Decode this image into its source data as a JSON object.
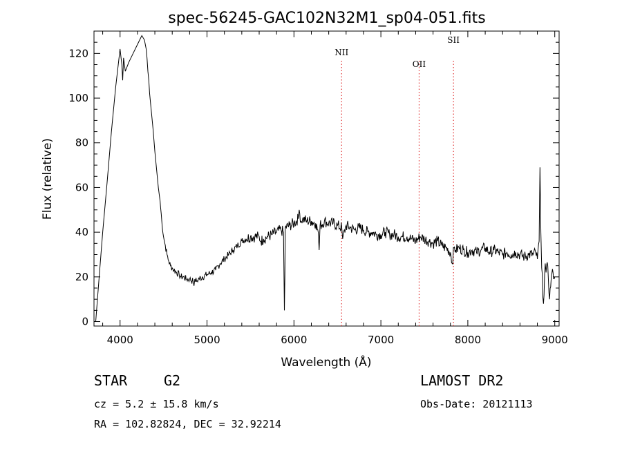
{
  "chart_data": {
    "type": "line",
    "title": "spec-56245-GAC102N32M1_sp04-051.fits",
    "xlabel": "Wavelength (Å)",
    "ylabel": "Flux (relative)",
    "xlim": [
      3700,
      9050
    ],
    "ylim": [
      -2,
      130
    ],
    "xticks": [
      4000,
      5000,
      6000,
      7000,
      8000,
      9000
    ],
    "yticks": [
      0,
      20,
      40,
      60,
      80,
      100,
      120
    ],
    "line_markers": [
      {
        "name": "NII",
        "x": 6548
      },
      {
        "name": "OII",
        "x": 7440
      },
      {
        "name": "SII",
        "x": 7835
      }
    ],
    "series": [
      {
        "color": "#000000",
        "x": [
          3720,
          3760,
          3800,
          3850,
          3900,
          3950,
          4000,
          4020,
          4030,
          4040,
          4060,
          4100,
          4150,
          4200,
          4250,
          4280,
          4300,
          4310,
          4320,
          4330,
          4340,
          4360,
          4380,
          4400,
          4420,
          4440,
          4460,
          4480,
          4500,
          4520,
          4540,
          4560,
          4580,
          4600,
          4620,
          4650,
          4680,
          4700,
          4730,
          4760,
          4800,
          4840,
          4850,
          4860,
          4880,
          4900,
          4950,
          5000,
          5050,
          5100,
          5150,
          5200,
          5250,
          5300,
          5350,
          5400,
          5450,
          5500,
          5550,
          5600,
          5620,
          5650,
          5700,
          5750,
          5800,
          5850,
          5880,
          5890,
          5896,
          5900,
          5950,
          6000,
          6050,
          6060,
          6080,
          6100,
          6150,
          6200,
          6250,
          6280,
          6290,
          6300,
          6350,
          6400,
          6450,
          6500,
          6550,
          6560,
          6600,
          6650,
          6700,
          6750,
          6800,
          6850,
          6900,
          6950,
          7000,
          7050,
          7100,
          7150,
          7200,
          7250,
          7300,
          7350,
          7400,
          7450,
          7500,
          7550,
          7600,
          7650,
          7700,
          7750,
          7800,
          7820,
          7840,
          7860,
          7900,
          7950,
          8000,
          8050,
          8100,
          8150,
          8200,
          8250,
          8300,
          8350,
          8400,
          8450,
          8500,
          8550,
          8600,
          8650,
          8700,
          8750,
          8780,
          8800,
          8820,
          8830,
          8840,
          8850,
          8870,
          8890,
          8900,
          8920,
          8940,
          8960,
          8980,
          9000
        ],
        "y": [
          0,
          20,
          40,
          62,
          85,
          105,
          122,
          115,
          108,
          118,
          112,
          116,
          120,
          124,
          128,
          126,
          122,
          118,
          112,
          108,
          102,
          94,
          86,
          76,
          68,
          60,
          54,
          45,
          38,
          34,
          30,
          27,
          25,
          24,
          23,
          22,
          21,
          20,
          20,
          19,
          19,
          18,
          16,
          19,
          18,
          19,
          20,
          21,
          22,
          23,
          26,
          28,
          30,
          32,
          34,
          36,
          37,
          38,
          38,
          38,
          36,
          37,
          38,
          39,
          40,
          41,
          40,
          5,
          20,
          42,
          43,
          44,
          46,
          50,
          45,
          46,
          45,
          45,
          44,
          40,
          32,
          43,
          45,
          44,
          44,
          43,
          42,
          37,
          43,
          42,
          41,
          42,
          41,
          40,
          40,
          39,
          39,
          40,
          39,
          39,
          38,
          38,
          38,
          37,
          36,
          38,
          37,
          36,
          35,
          36,
          34,
          33,
          31,
          26,
          33,
          32,
          33,
          32,
          31,
          32,
          31,
          32,
          33,
          31,
          32,
          31,
          30,
          31,
          30,
          31,
          30,
          29,
          30,
          30,
          31,
          28,
          36,
          69,
          40,
          24,
          8,
          26,
          22,
          25,
          10,
          20,
          22,
          20
        ]
      }
    ]
  },
  "footer": {
    "object_type": "STAR",
    "subclass": "G2",
    "survey": "LAMOST DR2",
    "cz": "cz = 5.2 ± 15.8 km/s",
    "obs_date": "Obs-Date: 20121113",
    "coords": "RA = 102.82824, DEC =  32.92214"
  }
}
